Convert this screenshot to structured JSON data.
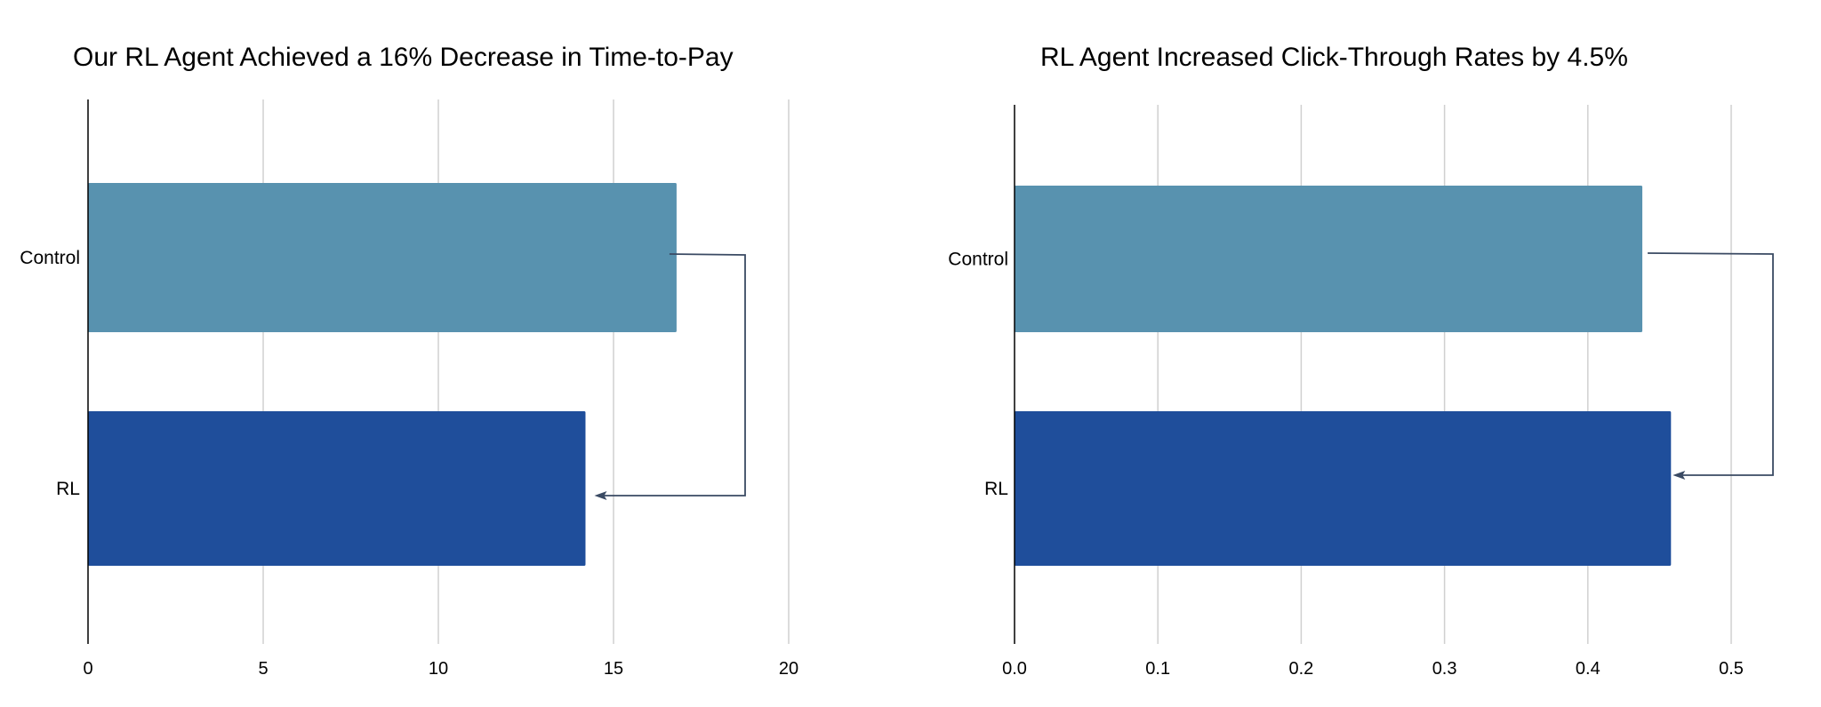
{
  "chart_data": [
    {
      "type": "bar",
      "orientation": "horizontal",
      "title": "Our RL Agent Achieved a 16% Decrease in Time-to-Pay",
      "categories": [
        "Control",
        "RL"
      ],
      "values": [
        16.8,
        14.2
      ],
      "xlim": [
        0,
        20
      ],
      "xticks": [
        "0",
        "5",
        "10",
        "15",
        "20"
      ],
      "xtick_values": [
        0,
        5,
        10,
        15,
        20
      ],
      "grid": "vertical",
      "colors": [
        "#5892af",
        "#1f4e9b"
      ],
      "annotation": "arrow from Control bar to RL bar"
    },
    {
      "type": "bar",
      "orientation": "horizontal",
      "title": "RL Agent Increased Click-Through Rates by 4.5%",
      "categories": [
        "Control",
        "RL"
      ],
      "values": [
        0.438,
        0.458
      ],
      "xlim": [
        0,
        0.5
      ],
      "xticks": [
        "0.0",
        "0.1",
        "0.2",
        "0.3",
        "0.4",
        "0.5"
      ],
      "xtick_values": [
        0,
        0.1,
        0.2,
        0.3,
        0.4,
        0.5
      ],
      "grid": "vertical",
      "colors": [
        "#5892af",
        "#1f4e9b"
      ],
      "annotation": "arrow from Control bar to RL bar"
    }
  ]
}
